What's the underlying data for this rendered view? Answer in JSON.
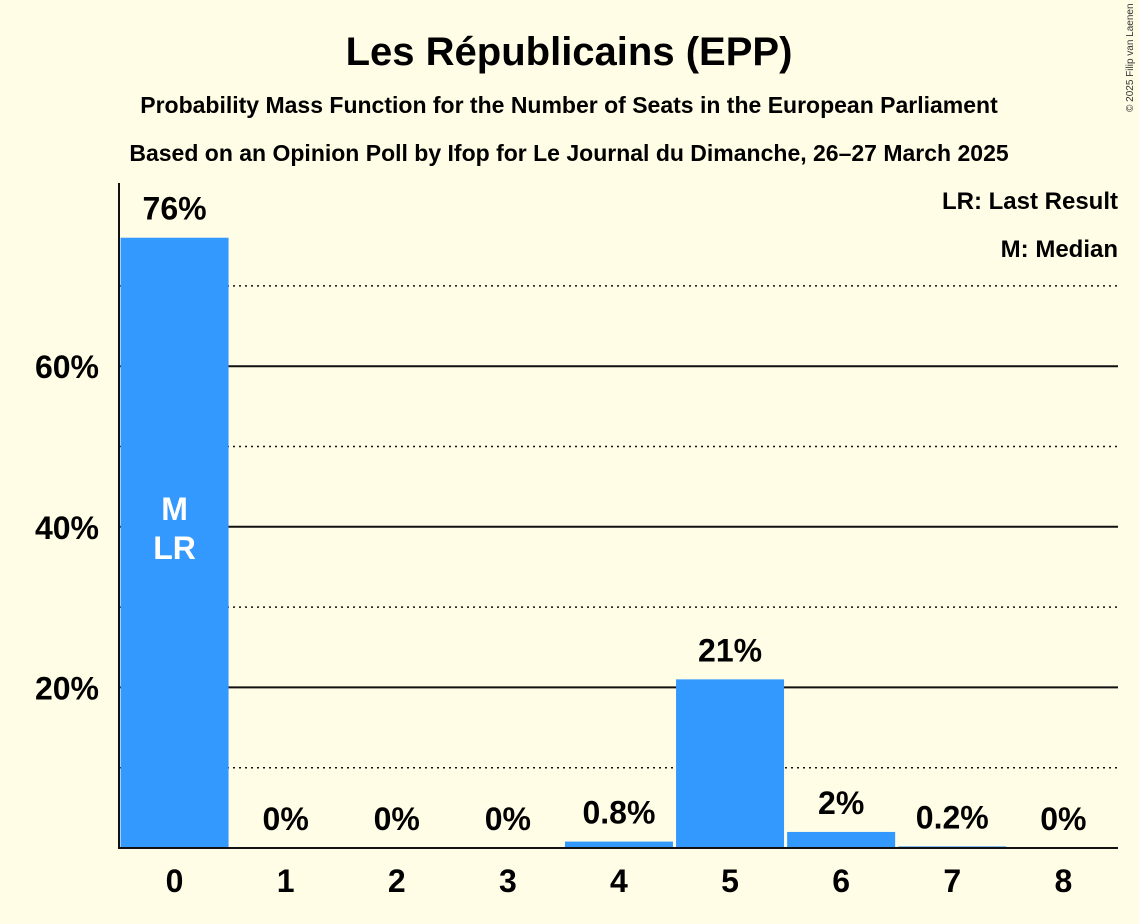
{
  "chart_data": {
    "type": "bar",
    "title": "Les Républicains (EPP)",
    "subtitle_1": "Probability Mass Function for the Number of Seats in the European Parliament",
    "subtitle_2": "Based on an Opinion Poll by Ifop for Le Journal du Dimanche, 26–27 March 2025",
    "categories": [
      "0",
      "1",
      "2",
      "3",
      "4",
      "5",
      "6",
      "7",
      "8"
    ],
    "values": [
      76,
      0,
      0,
      0,
      0.8,
      21,
      2,
      0.2,
      0
    ],
    "value_labels": [
      "76%",
      "0%",
      "0%",
      "0%",
      "0.8%",
      "21%",
      "2%",
      "0.2%",
      "0%"
    ],
    "ylim": [
      0,
      83
    ],
    "yticks": [
      20,
      40,
      60
    ],
    "ytick_labels": [
      "20%",
      "40%",
      "60%"
    ],
    "minor_gridlines": [
      10,
      30,
      50,
      70
    ],
    "xlabel": "",
    "ylabel": "",
    "bar_color": "#3399ff",
    "median_index": 0,
    "last_result_index": 0,
    "in_bar_labels": [
      "M",
      "LR"
    ],
    "legend": [
      "LR: Last Result",
      "M: Median"
    ],
    "legend_position": "top-right",
    "copyright": "© 2025 Filip van Laenen"
  }
}
